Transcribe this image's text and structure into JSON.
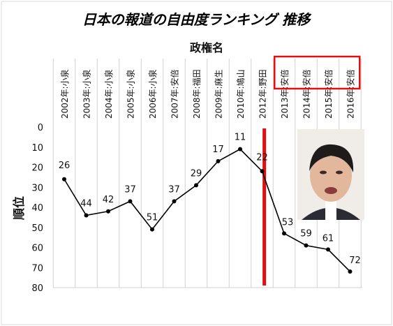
{
  "chart_data": {
    "type": "line",
    "title": "日本の報道の自由度ランキング 推移",
    "category_axis_title": "政権名",
    "ylabel": "順位",
    "categories": [
      "2002年:小泉",
      "2003年:小泉",
      "2004年:小泉",
      "2005年:小泉",
      "2006年:小泉",
      "2007年:安倍",
      "2008年:福田",
      "2009年:麻生",
      "2010年:鳩山",
      "2012年:野田",
      "2013年:安倍",
      "2014年:安倍",
      "2015年:安倍",
      "2016年:安倍"
    ],
    "x_position": [
      0,
      1,
      2,
      3,
      4,
      5,
      6,
      7,
      8,
      9,
      10,
      11,
      12,
      13
    ],
    "values": [
      26,
      44,
      42,
      37,
      51,
      37,
      29,
      17,
      11,
      22,
      53,
      59,
      61,
      72
    ],
    "ylim": [
      0,
      80
    ],
    "y_reversed": true,
    "yticks": [
      0,
      10,
      20,
      30,
      40,
      50,
      60,
      70,
      80
    ],
    "grid": "vertical",
    "line_color": "#000000",
    "highlight": {
      "red_line_after": "2012年:野田",
      "boxed_categories": [
        "2013年:安倍",
        "2014年:安倍",
        "2015年:安倍",
        "2016年:安倍"
      ],
      "color": "#e01010"
    },
    "inset_photo": "portrait-photo"
  }
}
